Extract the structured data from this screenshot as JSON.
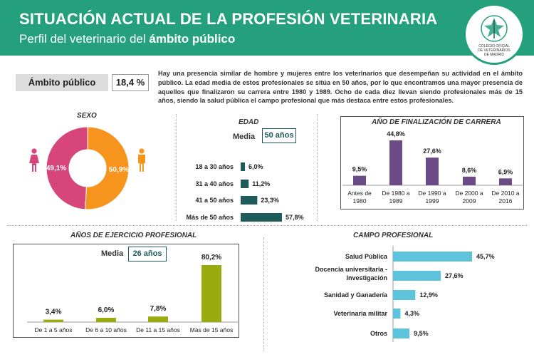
{
  "header": {
    "title": "SITUACIÓN ACTUAL DE LA PROFESIÓN VETERINARIA",
    "subtitle_prefix": "Perfil del veterinario del ",
    "subtitle_bold": "ámbito público"
  },
  "logo": {
    "line1": "COLEGIO OFICIAL",
    "line2": "DE VETERINARIOS",
    "line3": "DE MADRID"
  },
  "ambito": {
    "label": "Ámbito público",
    "value": "18,4 %"
  },
  "intro": "Hay una presencia similar de hombre y mujeres entre los veterinarios que desempeñan su actividad en el ámbito público. La edad media de estos profesionales se sitúa en 50 años, por lo que encontramos una mayor presencia de aquellos que finalizaron su carrera entre 1980 y 1989. Ocho de cada diez llevan siendo profesionales más de 15 años, siendo la salud pública el campo profesional que más destaca entre estos profesionales.",
  "icons": {
    "female": "female-person-icon",
    "male": "male-person-icon"
  },
  "colors": {
    "header": "#24a17c",
    "pink": "#d6467a",
    "orange": "#f7941d",
    "teal_dark": "#1e5b5b",
    "purple": "#6b4c86",
    "olive": "#99ab0f",
    "sky": "#5ec4dd"
  },
  "edad": {
    "media_label": "Media",
    "media_value": "50 años"
  },
  "ejercicio": {
    "media_label": "Media",
    "media_value": "26 años"
  },
  "chart_data": [
    {
      "id": "sexo",
      "type": "pie",
      "title": "SEXO",
      "categories": [
        "Mujeres",
        "Hombres"
      ],
      "values": [
        49.1,
        50.9
      ],
      "labels": [
        "49,1%",
        "50,9%"
      ]
    },
    {
      "id": "edad",
      "type": "bar",
      "orientation": "horizontal",
      "title": "EDAD",
      "categories": [
        "18 a 30 años",
        "31 a 40 años",
        "41 a 50 años",
        "Más de 50 años"
      ],
      "values": [
        6.0,
        11.2,
        23.3,
        57.8
      ],
      "labels": [
        "6,0%",
        "11,2%",
        "23,3%",
        "57,8%"
      ]
    },
    {
      "id": "finalizacion",
      "type": "bar",
      "title": "AÑO DE  FINALIZACIÓN DE CARRERA",
      "categories": [
        "Antes de 1980",
        "De 1980 a 1989",
        "De 1990 a 1999",
        "De 2000 a 2009",
        "De 2010 a 2016"
      ],
      "values": [
        9.5,
        44.8,
        27.6,
        8.6,
        6.9
      ],
      "labels": [
        "9,5%",
        "44,8%",
        "27,6%",
        "8,6%",
        "6,9%"
      ]
    },
    {
      "id": "ejercicio",
      "type": "bar",
      "title": "AÑOS DE EJERCICIO PROFESIONAL",
      "categories": [
        "De 1 a 5 años",
        "De 6 a 10 años",
        "De 11 a 15 años",
        "Más de 15 años"
      ],
      "values": [
        3.4,
        6.0,
        7.8,
        80.2
      ],
      "labels": [
        "3,4%",
        "6,0%",
        "7,8%",
        "80,2%"
      ]
    },
    {
      "id": "campo",
      "type": "bar",
      "orientation": "horizontal",
      "title": "CAMPO PROFESIONAL",
      "categories": [
        "Salud Pública",
        "Docencia  universitaria - Investigación",
        "Sanidad y Ganadería",
        "Veterinaria militar",
        "Otros"
      ],
      "values": [
        45.7,
        27.6,
        12.9,
        4.3,
        9.5
      ],
      "labels": [
        "45,7%",
        "27,6%",
        "12,9%",
        "4,3%",
        "9,5%"
      ]
    }
  ]
}
